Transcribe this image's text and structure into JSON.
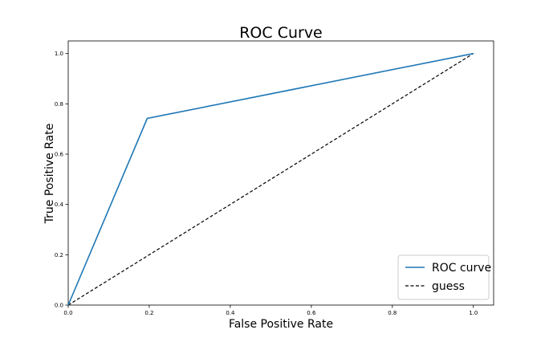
{
  "chart_data": {
    "type": "line",
    "title": "ROC Curve",
    "xlabel": "False Positive Rate",
    "ylabel": "True Positive Rate",
    "xlim": [
      0.0,
      1.05
    ],
    "ylim": [
      0.0,
      1.05
    ],
    "xticks": [
      "0.0",
      "0.2",
      "0.4",
      "0.6",
      "0.8",
      "1.0"
    ],
    "yticks": [
      "0.0",
      "0.2",
      "0.4",
      "0.6",
      "0.8",
      "1.0"
    ],
    "grid": false,
    "legend_position": "bottom-right",
    "series": [
      {
        "name": "ROC curve",
        "style": "solid",
        "color": "#1f77b4",
        "x": [
          0.0,
          0.195,
          1.0
        ],
        "y": [
          0.0,
          0.742,
          1.0
        ]
      },
      {
        "name": "guess",
        "style": "dashed",
        "color": "#000000",
        "x": [
          0.0,
          1.0
        ],
        "y": [
          0.0,
          1.0
        ]
      }
    ]
  }
}
